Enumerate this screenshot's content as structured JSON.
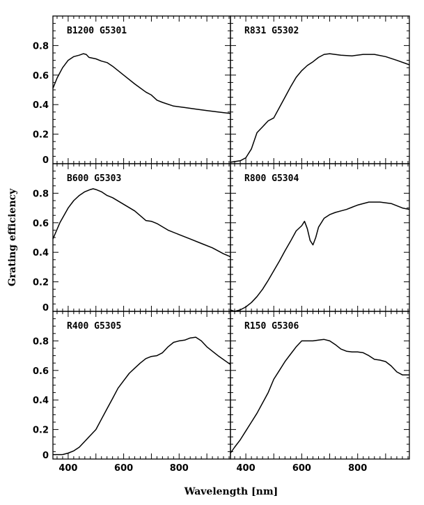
{
  "chart_data": {
    "type": "line",
    "xlabel": "Wavelength [nm]",
    "ylabel": "Grating efficiency",
    "xlim": [
      345,
      985
    ],
    "ylim": [
      0,
      1.0
    ],
    "x_ticks": [
      "400",
      "600",
      "800"
    ],
    "y_ticks": [
      "0",
      "0.2",
      "0.4",
      "0.6",
      "0.8"
    ],
    "grid": false,
    "panels": [
      {
        "label": "B1200 G5301",
        "x": [
          345,
          360,
          380,
          400,
          420,
          440,
          455,
          465,
          475,
          500,
          520,
          540,
          560,
          600,
          640,
          680,
          700,
          720,
          740,
          780,
          820,
          860,
          900,
          940,
          985
        ],
        "y": [
          0.51,
          0.58,
          0.65,
          0.7,
          0.725,
          0.735,
          0.745,
          0.74,
          0.72,
          0.71,
          0.695,
          0.685,
          0.66,
          0.6,
          0.54,
          0.485,
          0.465,
          0.43,
          0.415,
          0.39,
          0.38,
          0.37,
          0.36,
          0.35,
          0.34
        ]
      },
      {
        "label": "R831 G5302",
        "x": [
          345,
          380,
          400,
          420,
          440,
          460,
          480,
          500,
          520,
          540,
          560,
          580,
          600,
          620,
          640,
          660,
          680,
          700,
          740,
          780,
          820,
          860,
          900,
          940,
          985
        ],
        "y": [
          0.01,
          0.02,
          0.04,
          0.1,
          0.21,
          0.25,
          0.29,
          0.31,
          0.38,
          0.45,
          0.52,
          0.585,
          0.63,
          0.665,
          0.69,
          0.72,
          0.74,
          0.745,
          0.735,
          0.73,
          0.74,
          0.74,
          0.725,
          0.7,
          0.67
        ]
      },
      {
        "label": "B600 G5303",
        "x": [
          345,
          370,
          400,
          420,
          440,
          460,
          480,
          490,
          500,
          520,
          540,
          560,
          600,
          640,
          680,
          700,
          720,
          760,
          800,
          840,
          880,
          920,
          960,
          985
        ],
        "y": [
          0.49,
          0.6,
          0.7,
          0.75,
          0.785,
          0.81,
          0.825,
          0.83,
          0.825,
          0.81,
          0.785,
          0.77,
          0.725,
          0.68,
          0.615,
          0.61,
          0.595,
          0.55,
          0.52,
          0.49,
          0.46,
          0.43,
          0.39,
          0.37
        ]
      },
      {
        "label": "R800 G5304",
        "x": [
          345,
          360,
          380,
          400,
          420,
          440,
          460,
          480,
          500,
          520,
          540,
          560,
          580,
          600,
          610,
          620,
          630,
          640,
          650,
          660,
          680,
          700,
          720,
          740,
          760,
          780,
          800,
          840,
          880,
          920,
          960,
          985
        ],
        "y": [
          0.01,
          0.0,
          0.01,
          0.03,
          0.06,
          0.1,
          0.15,
          0.21,
          0.275,
          0.34,
          0.41,
          0.475,
          0.545,
          0.58,
          0.61,
          0.56,
          0.48,
          0.45,
          0.5,
          0.57,
          0.63,
          0.655,
          0.67,
          0.68,
          0.69,
          0.705,
          0.72,
          0.74,
          0.74,
          0.73,
          0.7,
          0.69
        ]
      },
      {
        "label": "R400 G5305",
        "x": [
          345,
          380,
          400,
          420,
          440,
          460,
          480,
          500,
          520,
          540,
          560,
          580,
          600,
          620,
          640,
          660,
          680,
          700,
          720,
          740,
          760,
          780,
          800,
          820,
          840,
          860,
          880,
          900,
          940,
          985
        ],
        "y": [
          0.03,
          0.03,
          0.04,
          0.055,
          0.08,
          0.12,
          0.16,
          0.2,
          0.27,
          0.34,
          0.41,
          0.48,
          0.53,
          0.58,
          0.615,
          0.65,
          0.68,
          0.695,
          0.7,
          0.72,
          0.76,
          0.79,
          0.8,
          0.805,
          0.82,
          0.825,
          0.8,
          0.76,
          0.7,
          0.64
        ]
      },
      {
        "label": "R150 G5306",
        "x": [
          345,
          360,
          380,
          400,
          420,
          440,
          460,
          480,
          500,
          520,
          540,
          560,
          580,
          600,
          620,
          640,
          660,
          680,
          700,
          720,
          740,
          760,
          780,
          800,
          820,
          840,
          860,
          880,
          900,
          920,
          940,
          960,
          985
        ],
        "y": [
          0.04,
          0.08,
          0.13,
          0.19,
          0.25,
          0.31,
          0.38,
          0.45,
          0.54,
          0.6,
          0.66,
          0.71,
          0.76,
          0.8,
          0.8,
          0.8,
          0.805,
          0.81,
          0.8,
          0.775,
          0.745,
          0.73,
          0.725,
          0.725,
          0.72,
          0.7,
          0.675,
          0.67,
          0.66,
          0.63,
          0.59,
          0.57,
          0.57
        ]
      }
    ]
  }
}
